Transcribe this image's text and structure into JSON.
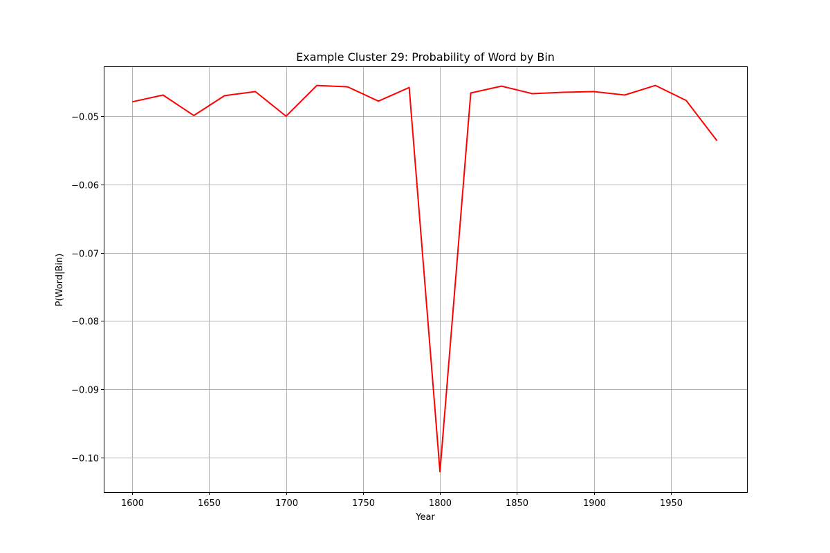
{
  "chart_data": {
    "type": "line",
    "title": "Example Cluster 29: Probability of Word by Bin",
    "xlabel": "Year",
    "ylabel": "P(Word|Bin)",
    "xlim": [
      1581.5,
      1999.5
    ],
    "ylim": [
      -0.1051,
      -0.0427
    ],
    "xticks": [
      1600,
      1650,
      1700,
      1750,
      1800,
      1850,
      1900,
      1950
    ],
    "yticks": [
      -0.05,
      -0.06,
      -0.07,
      -0.08,
      -0.09,
      -0.1
    ],
    "xtick_labels": [
      "1600",
      "1650",
      "1700",
      "1750",
      "1800",
      "1850",
      "1900",
      "1950"
    ],
    "ytick_labels": [
      "−0.05",
      "−0.06",
      "−0.07",
      "−0.08",
      "−0.09",
      "−0.10"
    ],
    "grid": true,
    "series": [
      {
        "color": "#ff0000",
        "x": [
          1600,
          1620,
          1640,
          1660,
          1680,
          1700,
          1720,
          1740,
          1760,
          1780,
          1800,
          1820,
          1840,
          1860,
          1880,
          1900,
          1920,
          1940,
          1960,
          1980
        ],
        "y": [
          -0.0479,
          -0.0469,
          -0.0499,
          -0.047,
          -0.0464,
          -0.05,
          -0.0455,
          -0.0457,
          -0.0478,
          -0.0458,
          -0.1021,
          -0.0466,
          -0.0456,
          -0.0467,
          -0.0465,
          -0.0464,
          -0.0469,
          -0.0455,
          -0.0477,
          -0.0536
        ]
      }
    ]
  }
}
